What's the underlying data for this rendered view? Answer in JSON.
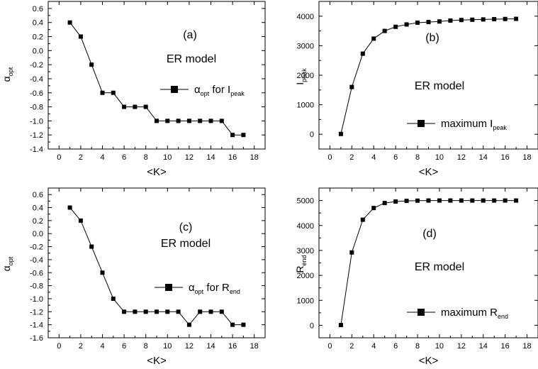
{
  "chart_data": [
    {
      "type": "line",
      "panel_label": "(a)",
      "annotation": "ER model",
      "xlabel": "<K>",
      "ylabel": {
        "main": "α",
        "sub": "opt"
      },
      "xlim": [
        -1,
        19
      ],
      "ylim": [
        -1.4,
        0.7
      ],
      "xticks": [
        0,
        2,
        4,
        6,
        8,
        10,
        12,
        14,
        16,
        18
      ],
      "yticks": [
        -1.4,
        -1.2,
        -1.0,
        -0.8,
        -0.6,
        -0.4,
        -0.2,
        0.0,
        0.2,
        0.4,
        0.6
      ],
      "ytick_labels": [
        "-1.4",
        "-1.2",
        "-1.0",
        "-0.8",
        "-0.6",
        "-0.4",
        "-0.2",
        "0.0",
        "0.2",
        "0.4",
        "0.6"
      ],
      "legend": {
        "main": "α",
        "sub1": "opt",
        "mid": " for I",
        "sub2": "peak",
        "placement": "center-right"
      },
      "marker": "square",
      "x": [
        1,
        2,
        3,
        4,
        5,
        6,
        7,
        8,
        9,
        10,
        11,
        12,
        13,
        14,
        15,
        16,
        17
      ],
      "y": [
        0.4,
        0.2,
        -0.2,
        -0.6,
        -0.6,
        -0.8,
        -0.8,
        -0.8,
        -1.0,
        -1.0,
        -1.0,
        -1.0,
        -1.0,
        -1.0,
        -1.0,
        -1.2,
        -1.2
      ]
    },
    {
      "type": "line",
      "panel_label": "(b)",
      "annotation": "ER model",
      "xlabel": "<K>",
      "ylabel": {
        "main": "I",
        "sub": "peak"
      },
      "xlim": [
        -1,
        19
      ],
      "ylim": [
        -500,
        4500
      ],
      "xticks": [
        0,
        2,
        4,
        6,
        8,
        10,
        12,
        14,
        16,
        18
      ],
      "yticks": [
        0,
        1000,
        2000,
        3000,
        4000
      ],
      "ytick_labels": [
        "0",
        "1000",
        "2000",
        "3000",
        "4000"
      ],
      "legend": {
        "main": "maximum I",
        "sub1": "peak",
        "mid": "",
        "sub2": "",
        "placement": "lower-right"
      },
      "marker": "square",
      "x": [
        1,
        2,
        3,
        4,
        5,
        6,
        7,
        8,
        9,
        10,
        11,
        12,
        13,
        14,
        15,
        16,
        17
      ],
      "y": [
        10,
        1600,
        2730,
        3240,
        3500,
        3640,
        3720,
        3780,
        3800,
        3820,
        3850,
        3870,
        3880,
        3890,
        3900,
        3905,
        3910
      ]
    },
    {
      "type": "line",
      "panel_label": "(c)",
      "annotation": "ER model",
      "xlabel": "<K>",
      "ylabel": {
        "main": "α",
        "sub": "opt"
      },
      "xlim": [
        -1,
        19
      ],
      "ylim": [
        -1.6,
        0.7
      ],
      "xticks": [
        0,
        2,
        4,
        6,
        8,
        10,
        12,
        14,
        16,
        18
      ],
      "yticks": [
        -1.6,
        -1.4,
        -1.2,
        -1.0,
        -0.8,
        -0.6,
        -0.4,
        -0.2,
        0.0,
        0.2,
        0.4,
        0.6
      ],
      "ytick_labels": [
        "-1.6",
        "-1.4",
        "-1.2",
        "-1.0",
        "-0.8",
        "-0.6",
        "-0.4",
        "-0.2",
        "0.0",
        "0.2",
        "0.4",
        "0.6"
      ],
      "legend": {
        "main": "α",
        "sub1": "opt",
        "mid": " for R",
        "sub2": "end",
        "placement": "center-right"
      },
      "marker": "square",
      "x": [
        1,
        2,
        3,
        4,
        5,
        6,
        7,
        8,
        9,
        10,
        11,
        12,
        13,
        14,
        15,
        16,
        17
      ],
      "y": [
        0.4,
        0.2,
        -0.2,
        -0.6,
        -1.0,
        -1.2,
        -1.2,
        -1.2,
        -1.2,
        -1.2,
        -1.2,
        -1.4,
        -1.2,
        -1.2,
        -1.2,
        -1.4,
        -1.4
      ]
    },
    {
      "type": "line",
      "panel_label": "(d)",
      "annotation": "ER model",
      "xlabel": "<K>",
      "ylabel": {
        "main": "R",
        "sub": "end"
      },
      "xlim": [
        -1,
        19
      ],
      "ylim": [
        -500,
        5500
      ],
      "xticks": [
        0,
        2,
        4,
        6,
        8,
        10,
        12,
        14,
        16,
        18
      ],
      "yticks": [
        0,
        1000,
        2000,
        3000,
        4000,
        5000
      ],
      "ytick_labels": [
        "0",
        "1000",
        "2000",
        "3000",
        "4000",
        "5000"
      ],
      "legend": {
        "main": "maximum R",
        "sub1": "end",
        "mid": "",
        "sub2": "",
        "placement": "lower-right"
      },
      "marker": "square",
      "x": [
        1,
        2,
        3,
        4,
        5,
        6,
        7,
        8,
        9,
        10,
        11,
        12,
        13,
        14,
        15,
        16,
        17
      ],
      "y": [
        10,
        2920,
        4230,
        4700,
        4900,
        4960,
        4985,
        4995,
        5000,
        5000,
        5000,
        5000,
        5000,
        5000,
        5000,
        5000,
        5000
      ]
    }
  ]
}
